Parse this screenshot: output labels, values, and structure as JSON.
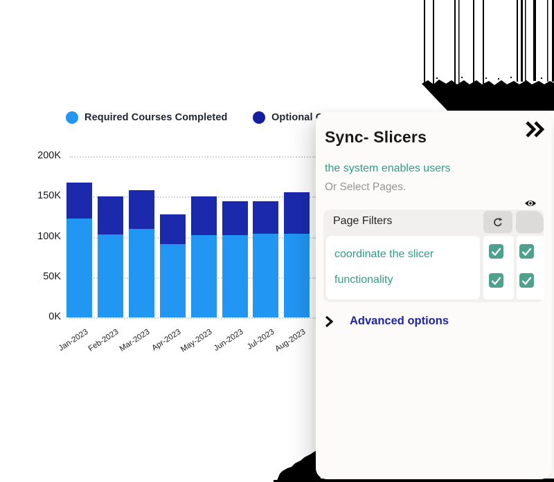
{
  "legend": {
    "items": [
      {
        "label": "Required Courses Completed",
        "color": "#2196F3"
      },
      {
        "label": "Optional Courses Completed",
        "color": "#141E9E"
      }
    ]
  },
  "chart_data": {
    "type": "bar",
    "stacked": true,
    "categories": [
      "Jan-2023",
      "Feb-2023",
      "Mar-2023",
      "Apr-2023",
      "May-2023",
      "Jun-2023",
      "Jul-2023",
      "Aug-2023"
    ],
    "series": [
      {
        "name": "Required Courses Completed",
        "color": "#2196F3",
        "values": [
          123,
          103,
          110,
          91,
          102,
          102,
          104,
          104
        ]
      },
      {
        "name": "Optional Courses Completed",
        "color": "#1B2AAD",
        "values": [
          44,
          47,
          48,
          37,
          48,
          42,
          40,
          51
        ]
      }
    ],
    "unit": "K",
    "ylim": [
      0,
      200
    ],
    "ytick_values": [
      200,
      150,
      100,
      50,
      0
    ],
    "ytick_labels": [
      "200K",
      "150K",
      "100K",
      "50K",
      "0K"
    ],
    "grid": "dotted-horizontal",
    "legend_position": "top"
  },
  "panel": {
    "title": "Sync- Slicers",
    "subtitle_teal": "the system enables users",
    "subtitle_gray": "Or Select Pages.",
    "filters": {
      "header": "Page Filters",
      "columns": [
        "refresh-icon",
        "eye-icon"
      ],
      "rows": [
        {
          "label": "coordinate the slicer",
          "checked": [
            true,
            true
          ]
        },
        {
          "label": "functionality",
          "checked": [
            true,
            true
          ]
        }
      ]
    },
    "advanced_label": "Advanced options",
    "colors": {
      "teal_text": "#2d9c86",
      "checkbox": "#4fa08d",
      "advanced_blue": "#1e23ae",
      "panel_bg": "#fcfbfa"
    }
  }
}
